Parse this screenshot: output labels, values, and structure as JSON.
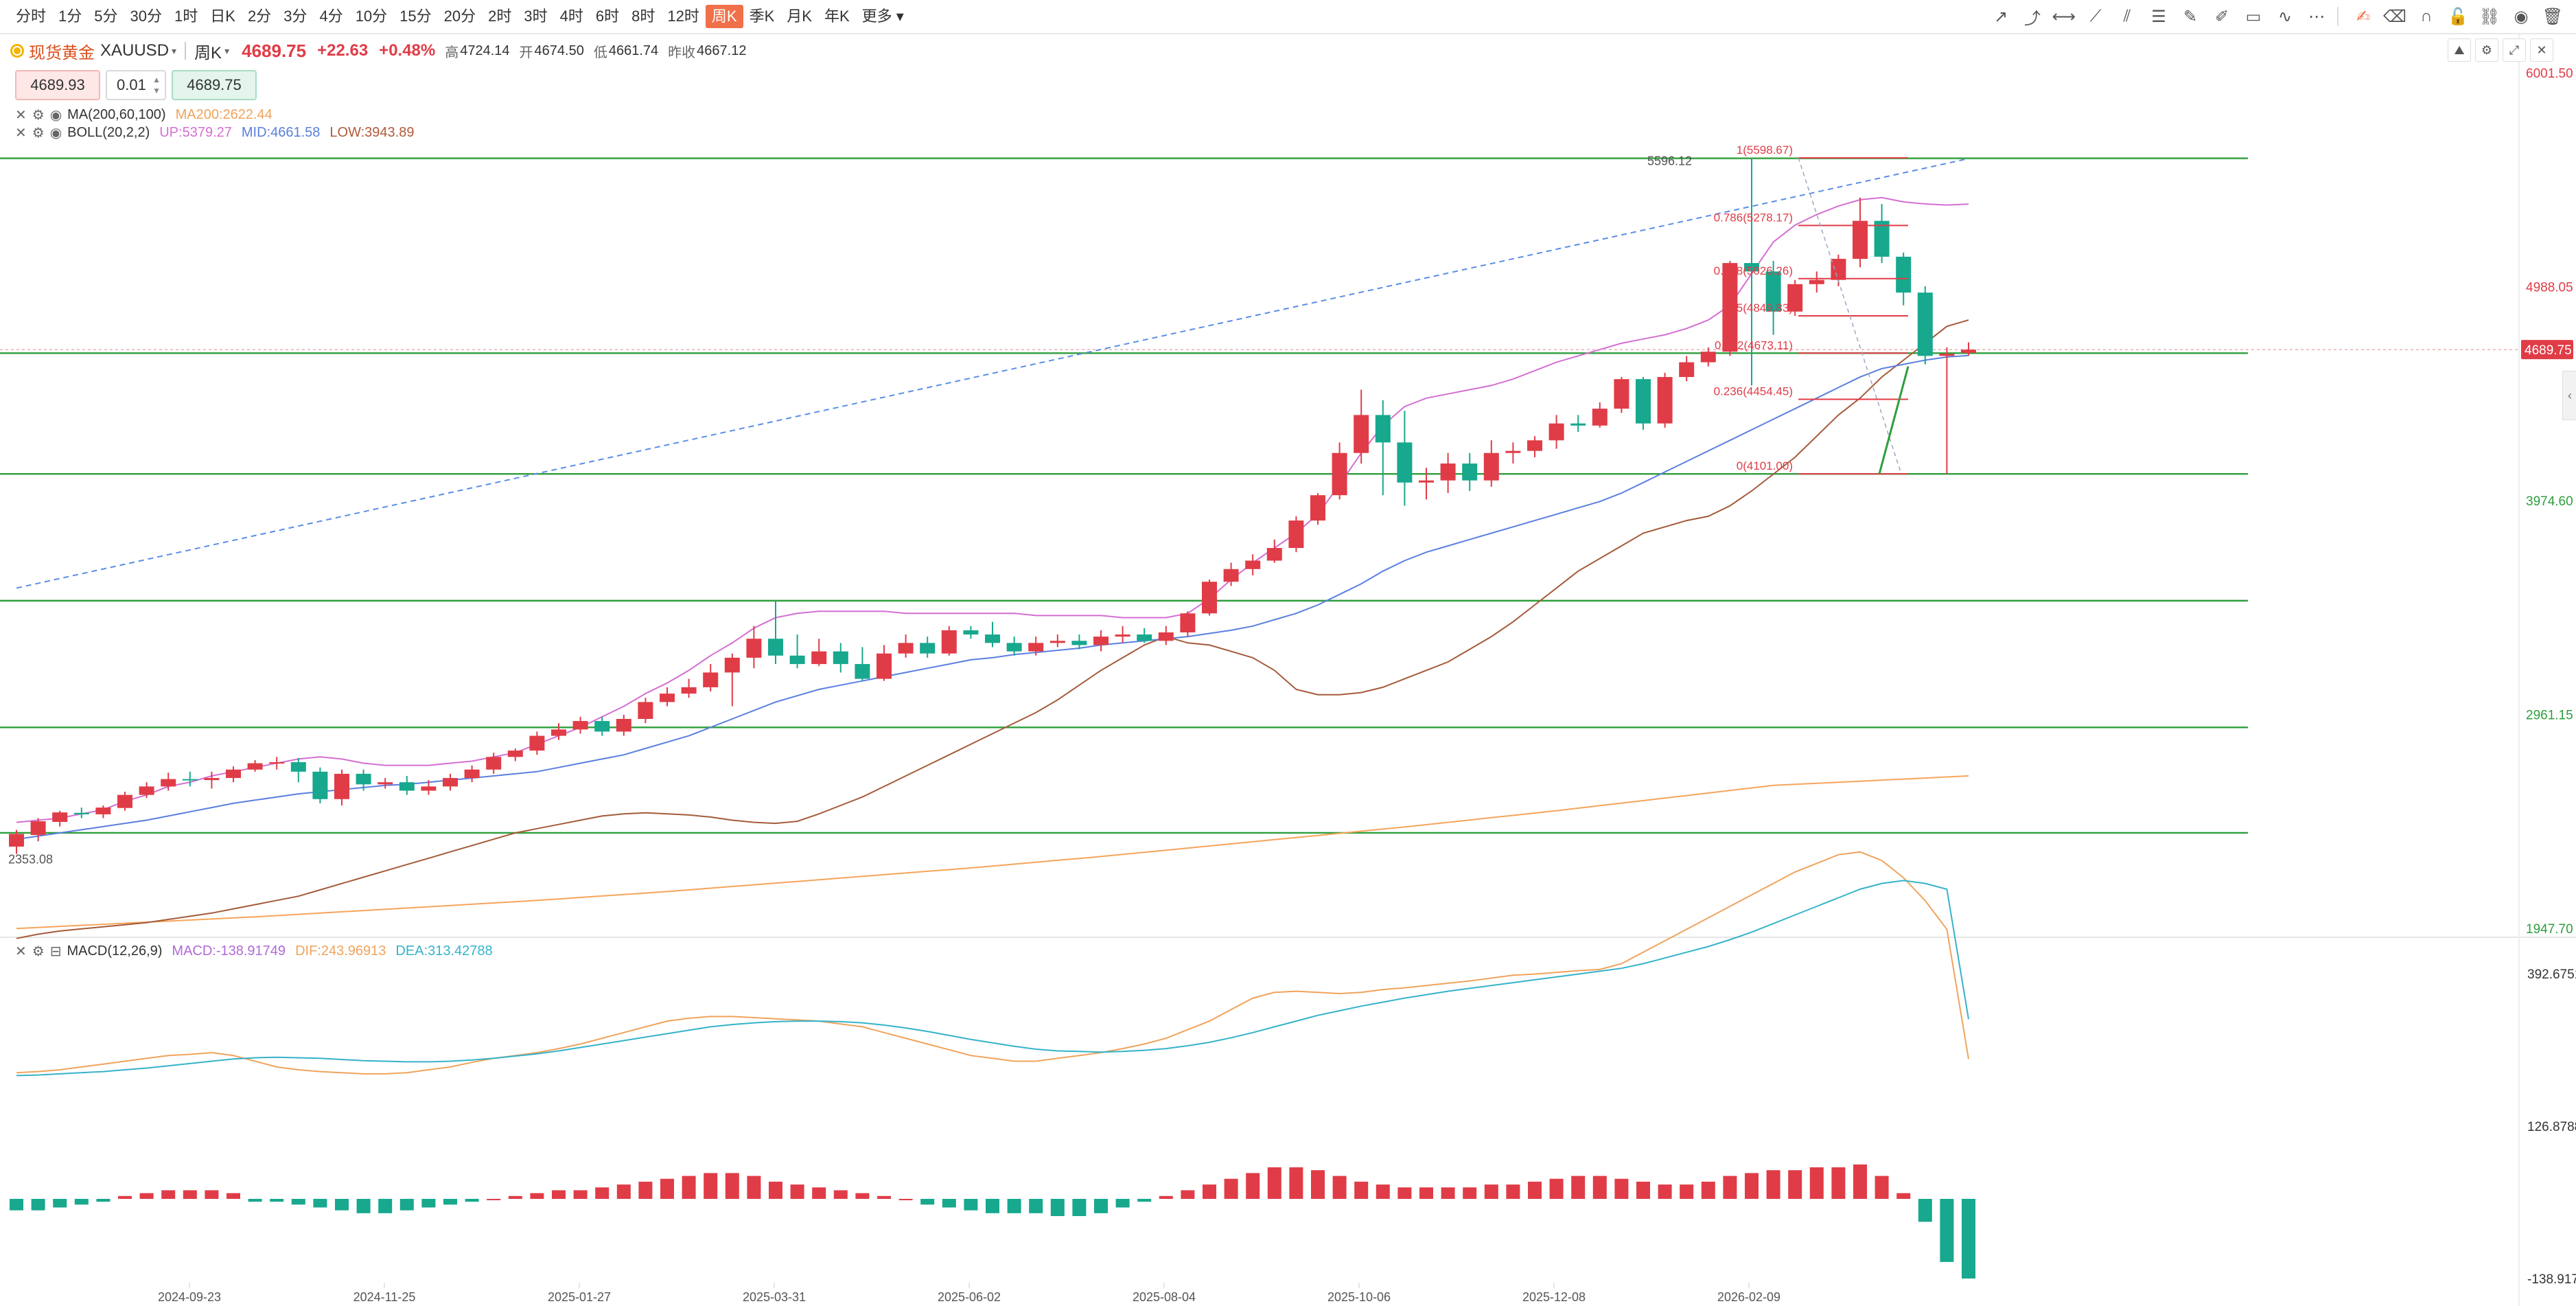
{
  "toolbar": {
    "timeframes": [
      "分时",
      "1分",
      "5分",
      "30分",
      "1时",
      "日K",
      "2分",
      "3分",
      "4分",
      "10分",
      "15分",
      "20分",
      "2时",
      "3时",
      "4时",
      "6时",
      "8时",
      "12时",
      "周K",
      "季K",
      "月K",
      "年K",
      "更多"
    ],
    "active_index": 18
  },
  "draw_tools": [
    "arrow-up-right-icon",
    "ray-icon",
    "horizontal-line-icon",
    "trend-line-icon",
    "parallel-channel-icon",
    "fib-icon",
    "pen-icon",
    "brush-icon",
    "rectangle-icon",
    "wave-icon",
    "more-dots-icon",
    "divider",
    "note-icon",
    "eraser-icon",
    "magnet-icon",
    "lock-icon",
    "chain-icon",
    "eye-icon",
    "trash-icon"
  ],
  "quote": {
    "symbol_cn": "现货黄金",
    "symbol": "XAUUSD",
    "period": "周K",
    "price": "4689.75",
    "change": "+22.63",
    "change_pct": "+0.48%",
    "high_label": "高",
    "high": "4724.14",
    "open_label": "开",
    "open": "4674.50",
    "low_label": "低",
    "low": "4661.74",
    "prev_label": "昨收",
    "prev": "4667.12"
  },
  "order": {
    "sell_price": "4689.93",
    "quantity": "0.01",
    "buy_price": "4689.75"
  },
  "indicators": {
    "ma": {
      "name": "MA(200,60,100)",
      "value": "MA200:2622.44"
    },
    "boll": {
      "name": "BOLL(20,2,2)",
      "up": "UP:5379.27",
      "mid": "MID:4661.58",
      "low": "LOW:3943.89"
    },
    "macd": {
      "name": "MACD(12,26,9)",
      "macd": "MACD:-138.91749",
      "dif": "DIF:243.96913",
      "dea": "DEA:313.42788"
    }
  },
  "chart_data": {
    "type": "candlestick",
    "price_axis": {
      "min": 1947.7,
      "max": 6001.5,
      "labels": [
        "6001.50",
        "4988.05",
        "3974.60",
        "2961.15",
        "1947.70"
      ]
    },
    "current_price_tag": "4689.75",
    "min_marker": "2353.08",
    "max_marker": "5596.12",
    "date_labels": [
      "2024-09-23",
      "2024-11-25",
      "2025-01-27",
      "2025-03-31",
      "2025-06-02",
      "2025-08-04",
      "2025-10-06",
      "2025-12-08",
      "2026-02-09"
    ],
    "candles": [
      [
        2335,
        2395,
        2300,
        2414
      ],
      [
        2390,
        2455,
        2360,
        2470
      ],
      [
        2452,
        2497,
        2430,
        2505
      ],
      [
        2495,
        2488,
        2470,
        2520
      ],
      [
        2488,
        2520,
        2470,
        2530
      ],
      [
        2518,
        2580,
        2505,
        2595
      ],
      [
        2580,
        2620,
        2565,
        2640
      ],
      [
        2620,
        2655,
        2600,
        2685
      ],
      [
        2655,
        2650,
        2620,
        2690
      ],
      [
        2650,
        2660,
        2610,
        2690
      ],
      [
        2660,
        2700,
        2640,
        2715
      ],
      [
        2700,
        2730,
        2690,
        2745
      ],
      [
        2730,
        2735,
        2700,
        2760
      ],
      [
        2735,
        2690,
        2640,
        2755
      ],
      [
        2690,
        2560,
        2540,
        2710
      ],
      [
        2560,
        2680,
        2530,
        2700
      ],
      [
        2680,
        2630,
        2600,
        2700
      ],
      [
        2630,
        2640,
        2610,
        2660
      ],
      [
        2640,
        2600,
        2580,
        2670
      ],
      [
        2600,
        2620,
        2580,
        2650
      ],
      [
        2620,
        2660,
        2600,
        2680
      ],
      [
        2660,
        2700,
        2640,
        2720
      ],
      [
        2700,
        2760,
        2680,
        2780
      ],
      [
        2760,
        2790,
        2740,
        2800
      ],
      [
        2790,
        2860,
        2770,
        2880
      ],
      [
        2860,
        2890,
        2840,
        2920
      ],
      [
        2890,
        2930,
        2870,
        2950
      ],
      [
        2930,
        2880,
        2860,
        2950
      ],
      [
        2880,
        2940,
        2860,
        2960
      ],
      [
        2940,
        3020,
        2920,
        3040
      ],
      [
        3020,
        3060,
        3000,
        3090
      ],
      [
        3060,
        3090,
        3040,
        3130
      ],
      [
        3090,
        3160,
        3070,
        3200
      ],
      [
        3160,
        3230,
        3000,
        3250
      ],
      [
        3230,
        3320,
        3180,
        3380
      ],
      [
        3320,
        3240,
        3200,
        3500
      ],
      [
        3240,
        3200,
        3180,
        3340
      ],
      [
        3200,
        3260,
        3190,
        3320
      ],
      [
        3260,
        3200,
        3160,
        3300
      ],
      [
        3200,
        3130,
        3120,
        3280
      ],
      [
        3130,
        3250,
        3120,
        3290
      ],
      [
        3250,
        3300,
        3230,
        3340
      ],
      [
        3300,
        3250,
        3230,
        3330
      ],
      [
        3250,
        3360,
        3240,
        3380
      ],
      [
        3360,
        3340,
        3320,
        3380
      ],
      [
        3340,
        3300,
        3280,
        3400
      ],
      [
        3300,
        3260,
        3240,
        3330
      ],
      [
        3260,
        3300,
        3240,
        3330
      ],
      [
        3300,
        3310,
        3280,
        3340
      ],
      [
        3310,
        3290,
        3270,
        3340
      ],
      [
        3290,
        3330,
        3260,
        3360
      ],
      [
        3330,
        3340,
        3300,
        3380
      ],
      [
        3340,
        3310,
        3300,
        3370
      ],
      [
        3310,
        3350,
        3290,
        3380
      ],
      [
        3350,
        3440,
        3330,
        3450
      ],
      [
        3440,
        3590,
        3430,
        3600
      ],
      [
        3590,
        3650,
        3570,
        3680
      ],
      [
        3650,
        3690,
        3620,
        3720
      ],
      [
        3690,
        3750,
        3680,
        3790
      ],
      [
        3750,
        3880,
        3730,
        3900
      ],
      [
        3880,
        4000,
        3860,
        4010
      ],
      [
        4000,
        4200,
        3980,
        4250
      ],
      [
        4200,
        4380,
        4150,
        4500
      ],
      [
        4380,
        4250,
        4000,
        4450
      ],
      [
        4250,
        4060,
        3950,
        4400
      ],
      [
        4060,
        4070,
        3980,
        4130
      ],
      [
        4070,
        4150,
        4010,
        4200
      ],
      [
        4150,
        4070,
        4020,
        4200
      ],
      [
        4070,
        4200,
        4040,
        4260
      ],
      [
        4200,
        4210,
        4150,
        4250
      ],
      [
        4210,
        4260,
        4180,
        4280
      ],
      [
        4260,
        4340,
        4220,
        4380
      ],
      [
        4340,
        4330,
        4300,
        4380
      ],
      [
        4330,
        4410,
        4320,
        4440
      ],
      [
        4410,
        4550,
        4390,
        4560
      ],
      [
        4550,
        4340,
        4310,
        4560
      ],
      [
        4340,
        4560,
        4320,
        4580
      ],
      [
        4560,
        4630,
        4540,
        4660
      ],
      [
        4630,
        4680,
        4610,
        4700
      ],
      [
        4680,
        5100,
        4660,
        5110
      ],
      [
        5100,
        5060,
        4520,
        5596
      ],
      [
        5060,
        4870,
        4760,
        5110
      ],
      [
        4870,
        5000,
        4850,
        5020
      ],
      [
        5000,
        5020,
        4960,
        5060
      ],
      [
        5020,
        5120,
        4990,
        5140
      ],
      [
        5120,
        5300,
        5080,
        5410
      ],
      [
        5300,
        5130,
        5100,
        5380
      ],
      [
        5130,
        4960,
        4900,
        5150
      ],
      [
        4960,
        4660,
        4620,
        4990
      ],
      [
        4660,
        4670,
        4101,
        4700
      ],
      [
        4674.5,
        4689.75,
        4661.74,
        4724.14
      ]
    ],
    "boll_up": [
      2450,
      2460,
      2470,
      2490,
      2510,
      2550,
      2580,
      2620,
      2640,
      2670,
      2690,
      2710,
      2730,
      2750,
      2760,
      2750,
      2730,
      2720,
      2720,
      2720,
      2730,
      2740,
      2760,
      2780,
      2820,
      2860,
      2900,
      2950,
      3000,
      3060,
      3110,
      3170,
      3240,
      3300,
      3370,
      3420,
      3440,
      3450,
      3450,
      3450,
      3450,
      3440,
      3440,
      3440,
      3440,
      3440,
      3440,
      3430,
      3430,
      3430,
      3430,
      3420,
      3420,
      3420,
      3440,
      3510,
      3600,
      3680,
      3750,
      3820,
      3910,
      4050,
      4200,
      4330,
      4420,
      4460,
      4480,
      4500,
      4520,
      4550,
      4590,
      4630,
      4660,
      4690,
      4720,
      4740,
      4760,
      4790,
      4830,
      4900,
      5050,
      5200,
      5280,
      5330,
      5370,
      5400,
      5410,
      5390,
      5380,
      5375,
      5379
    ],
    "boll_mid": [
      2370,
      2385,
      2400,
      2415,
      2430,
      2445,
      2460,
      2480,
      2500,
      2520,
      2540,
      2555,
      2570,
      2585,
      2595,
      2605,
      2615,
      2625,
      2630,
      2640,
      2650,
      2660,
      2670,
      2680,
      2690,
      2710,
      2730,
      2750,
      2770,
      2800,
      2830,
      2860,
      2900,
      2940,
      2980,
      3020,
      3050,
      3080,
      3100,
      3120,
      3140,
      3160,
      3180,
      3200,
      3220,
      3230,
      3245,
      3255,
      3265,
      3275,
      3290,
      3300,
      3310,
      3320,
      3330,
      3345,
      3360,
      3380,
      3410,
      3440,
      3480,
      3530,
      3580,
      3640,
      3690,
      3730,
      3760,
      3790,
      3820,
      3850,
      3880,
      3910,
      3940,
      3970,
      4010,
      4060,
      4110,
      4160,
      4210,
      4260,
      4310,
      4360,
      4410,
      4460,
      4510,
      4560,
      4600,
      4620,
      4640,
      4655,
      4661.58
    ],
    "ma60": [
      1900,
      1920,
      1935,
      1945,
      1955,
      1965,
      1975,
      1990,
      2005,
      2020,
      2040,
      2060,
      2080,
      2100,
      2130,
      2160,
      2190,
      2220,
      2250,
      2280,
      2310,
      2340,
      2370,
      2400,
      2420,
      2440,
      2460,
      2480,
      2490,
      2495,
      2490,
      2485,
      2475,
      2460,
      2450,
      2445,
      2455,
      2490,
      2530,
      2570,
      2620,
      2670,
      2720,
      2770,
      2820,
      2870,
      2920,
      2970,
      3030,
      3100,
      3170,
      3230,
      3290,
      3330,
      3300,
      3290,
      3260,
      3230,
      3170,
      3080,
      3055,
      3055,
      3065,
      3090,
      3130,
      3170,
      3210,
      3270,
      3330,
      3400,
      3480,
      3560,
      3640,
      3700,
      3760,
      3820,
      3850,
      3880,
      3900,
      3950,
      4020,
      4100,
      4180,
      4280,
      4380,
      4460,
      4560,
      4640,
      4720,
      4800,
      4830
    ],
    "ma200": [
      1947,
      1952,
      1957,
      1962,
      1967,
      1972,
      1977,
      1982,
      1987,
      1992,
      1997,
      2002,
      2008,
      2014,
      2020,
      2026,
      2032,
      2038,
      2044,
      2050,
      2056,
      2062,
      2068,
      2074,
      2080,
      2087,
      2094,
      2101,
      2108,
      2115,
      2122,
      2130,
      2138,
      2146,
      2154,
      2162,
      2170,
      2178,
      2186,
      2194,
      2202,
      2210,
      2218,
      2226,
      2234,
      2243,
      2252,
      2261,
      2270,
      2279,
      2288,
      2298,
      2308,
      2318,
      2328,
      2338,
      2348,
      2358,
      2368,
      2378,
      2388,
      2398,
      2408,
      2418,
      2428,
      2439,
      2450,
      2461,
      2472,
      2483,
      2494,
      2505,
      2517,
      2529,
      2541,
      2553,
      2565,
      2577,
      2589,
      2601,
      2613,
      2625,
      2630,
      2635,
      2640,
      2645,
      2650,
      2655,
      2660,
      2665,
      2670
    ],
    "h_lines": [
      5596.12,
      4673.11,
      4101.0,
      3500,
      2900,
      2400
    ],
    "fib_levels": [
      {
        "label": "1(5598.67)",
        "price": 5598.67
      },
      {
        "label": "0.786(5278.17)",
        "price": 5278.17
      },
      {
        "label": "0.618(5026.26)",
        "price": 5026.26
      },
      {
        "label": "0.5(4849.83)",
        "price": 4849.83
      },
      {
        "label": "0.382(4673.11)",
        "price": 4673.11
      },
      {
        "label": "0.236(4454.45)",
        "price": 4454.45
      },
      {
        "label": "0(4101.00)",
        "price": 4101.0
      }
    ],
    "trend_line": [
      [
        0,
        3560
      ],
      [
        90,
        5595
      ]
    ],
    "macd_axis": {
      "min": -138.91749,
      "max": 392.67516,
      "labels": [
        "392.67516",
        "126.87883",
        "-138.91749"
      ]
    },
    "macd_hist": [
      -20,
      -20,
      -15,
      -10,
      -5,
      5,
      10,
      15,
      15,
      15,
      10,
      -5,
      -5,
      -10,
      -15,
      -20,
      -25,
      -25,
      -20,
      -15,
      -10,
      -5,
      0,
      5,
      10,
      15,
      15,
      20,
      25,
      30,
      35,
      40,
      45,
      45,
      40,
      30,
      25,
      20,
      15,
      10,
      5,
      0,
      -10,
      -15,
      -20,
      -25,
      -25,
      -25,
      -30,
      -30,
      -25,
      -15,
      -5,
      5,
      15,
      25,
      35,
      45,
      55,
      55,
      50,
      40,
      30,
      25,
      20,
      20,
      20,
      20,
      25,
      25,
      30,
      35,
      40,
      40,
      35,
      30,
      25,
      25,
      30,
      40,
      45,
      50,
      50,
      55,
      55,
      60,
      40,
      10,
      -40,
      -110,
      -138.9
    ],
    "macd_dif": [
      220,
      222,
      225,
      230,
      235,
      240,
      245,
      250,
      252,
      255,
      250,
      240,
      230,
      225,
      222,
      220,
      218,
      218,
      220,
      225,
      230,
      238,
      245,
      250,
      255,
      262,
      270,
      280,
      290,
      300,
      310,
      315,
      318,
      318,
      316,
      314,
      312,
      310,
      305,
      300,
      290,
      280,
      270,
      260,
      250,
      245,
      240,
      240,
      245,
      250,
      255,
      262,
      270,
      280,
      295,
      310,
      330,
      350,
      360,
      362,
      360,
      358,
      360,
      365,
      368,
      372,
      376,
      380,
      385,
      390,
      392,
      395,
      398,
      400,
      410,
      430,
      450,
      470,
      490,
      510,
      530,
      550,
      570,
      585,
      600,
      605,
      590,
      560,
      520,
      470,
      243.97
    ],
    "macd_dea": [
      215,
      216,
      218,
      220,
      222,
      225,
      228,
      232,
      236,
      240,
      244,
      246,
      247,
      246,
      245,
      243,
      241,
      240,
      239,
      239,
      240,
      242,
      245,
      249,
      253,
      258,
      264,
      270,
      276,
      282,
      288,
      294,
      300,
      304,
      307,
      309,
      310,
      310,
      309,
      307,
      303,
      298,
      292,
      285,
      278,
      272,
      266,
      261,
      258,
      257,
      256,
      257,
      259,
      262,
      267,
      273,
      281,
      290,
      300,
      310,
      320,
      328,
      336,
      343,
      350,
      356,
      362,
      367,
      372,
      377,
      382,
      387,
      392,
      397,
      402,
      410,
      420,
      430,
      440,
      452,
      465,
      480,
      495,
      510,
      525,
      540,
      550,
      555,
      550,
      540,
      313.43
    ]
  }
}
